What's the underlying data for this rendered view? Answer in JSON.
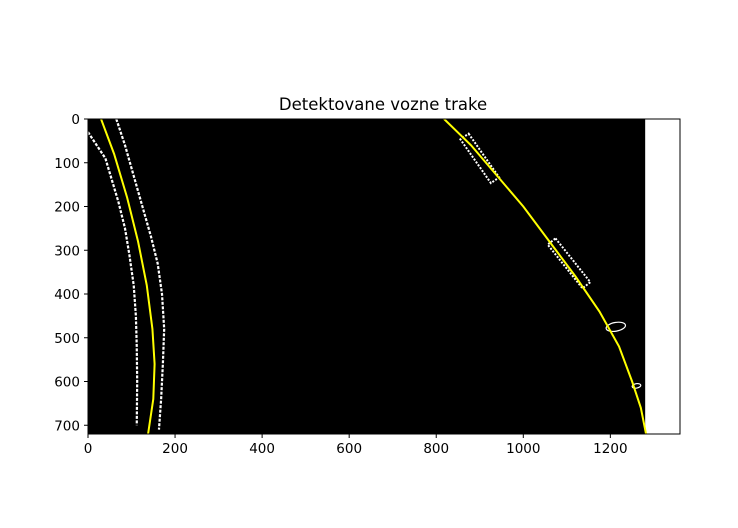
{
  "chart_data": {
    "type": "image",
    "title": "Detektovane vozne trake",
    "xlabel": "",
    "ylabel": "",
    "xlim": [
      0,
      1360
    ],
    "ylim": [
      720,
      0
    ],
    "x_ticks": [
      0,
      200,
      400,
      600,
      800,
      1000,
      1200
    ],
    "y_ticks": [
      0,
      100,
      200,
      300,
      400,
      500,
      600,
      700
    ],
    "image_extent": {
      "width": 1280,
      "height": 720
    },
    "image_background": "#000000",
    "fit_color": "#ffff00",
    "lane_pixels_color": "#ffffff",
    "series": [
      {
        "curve": "left-lane-fit",
        "points": [
          [
            30,
            0
          ],
          [
            60,
            80
          ],
          [
            90,
            180
          ],
          [
            115,
            280
          ],
          [
            135,
            380
          ],
          [
            148,
            480
          ],
          [
            153,
            560
          ],
          [
            150,
            640
          ],
          [
            138,
            720
          ]
        ]
      },
      {
        "curve": "right-lane-fit",
        "points": [
          [
            818,
            0
          ],
          [
            880,
            60
          ],
          [
            940,
            130
          ],
          [
            1000,
            200
          ],
          [
            1060,
            280
          ],
          [
            1120,
            360
          ],
          [
            1175,
            440
          ],
          [
            1220,
            520
          ],
          [
            1250,
            600
          ],
          [
            1270,
            660
          ],
          [
            1282,
            720
          ]
        ]
      }
    ],
    "detected_pixels": {
      "left_outer_edge": [
        [
          0,
          30
        ],
        [
          20,
          60
        ],
        [
          40,
          90
        ],
        [
          55,
          140
        ],
        [
          70,
          190
        ],
        [
          85,
          250
        ],
        [
          95,
          310
        ],
        [
          105,
          380
        ],
        [
          110,
          450
        ],
        [
          112,
          520
        ],
        [
          113,
          600
        ],
        [
          112,
          700
        ]
      ],
      "left_inner_edge": [
        [
          65,
          0
        ],
        [
          85,
          60
        ],
        [
          105,
          130
        ],
        [
          125,
          200
        ],
        [
          145,
          270
        ],
        [
          160,
          330
        ],
        [
          170,
          400
        ],
        [
          175,
          480
        ],
        [
          172,
          560
        ],
        [
          168,
          640
        ],
        [
          163,
          710
        ]
      ],
      "right_blobs": [
        {
          "x": [
            865,
            935
          ],
          "y": [
            40,
            140
          ]
        },
        {
          "x": [
            1065,
            1145
          ],
          "y": [
            280,
            380
          ]
        }
      ],
      "right_small_marks": [
        {
          "x": [
            1190,
            1235
          ],
          "y": [
            465,
            485
          ]
        },
        {
          "x": [
            1250,
            1270
          ],
          "y": [
            605,
            615
          ]
        }
      ]
    }
  }
}
